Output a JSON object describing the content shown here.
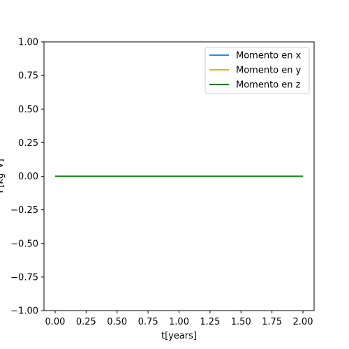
{
  "chart_data": {
    "type": "line",
    "xlabel": "t[years]",
    "ylabel": "P[kg*V]",
    "xlim": [
      -0.09,
      2.09
    ],
    "ylim": [
      -1.0,
      1.0
    ],
    "x_ticks": [
      0.0,
      0.25,
      0.5,
      0.75,
      1.0,
      1.25,
      1.5,
      1.75,
      2.0
    ],
    "x_tick_labels": [
      "0.00",
      "0.25",
      "0.50",
      "0.75",
      "1.00",
      "1.25",
      "1.50",
      "1.75",
      "2.00"
    ],
    "y_ticks": [
      -1.0,
      -0.75,
      -0.5,
      -0.25,
      0.0,
      0.25,
      0.5,
      0.75,
      1.0
    ],
    "y_tick_labels": [
      "−1.00",
      "−0.75",
      "−0.50",
      "−0.25",
      "0.00",
      "0.25",
      "0.50",
      "0.75",
      "1.00"
    ],
    "grid": false,
    "legend_position": "top-right",
    "series": [
      {
        "name": "Momento en x",
        "color": "#1f8ef1",
        "x": [
          0.0,
          2.0
        ],
        "y": [
          0.0,
          0.0
        ]
      },
      {
        "name": "Momento en y",
        "color": "#ffa500",
        "x": [
          0.0,
          2.0
        ],
        "y": [
          0.0,
          0.0
        ]
      },
      {
        "name": "Momento en z",
        "color": "#008000",
        "x": [
          0.0,
          2.0
        ],
        "y": [
          0.0,
          0.0
        ]
      }
    ]
  }
}
